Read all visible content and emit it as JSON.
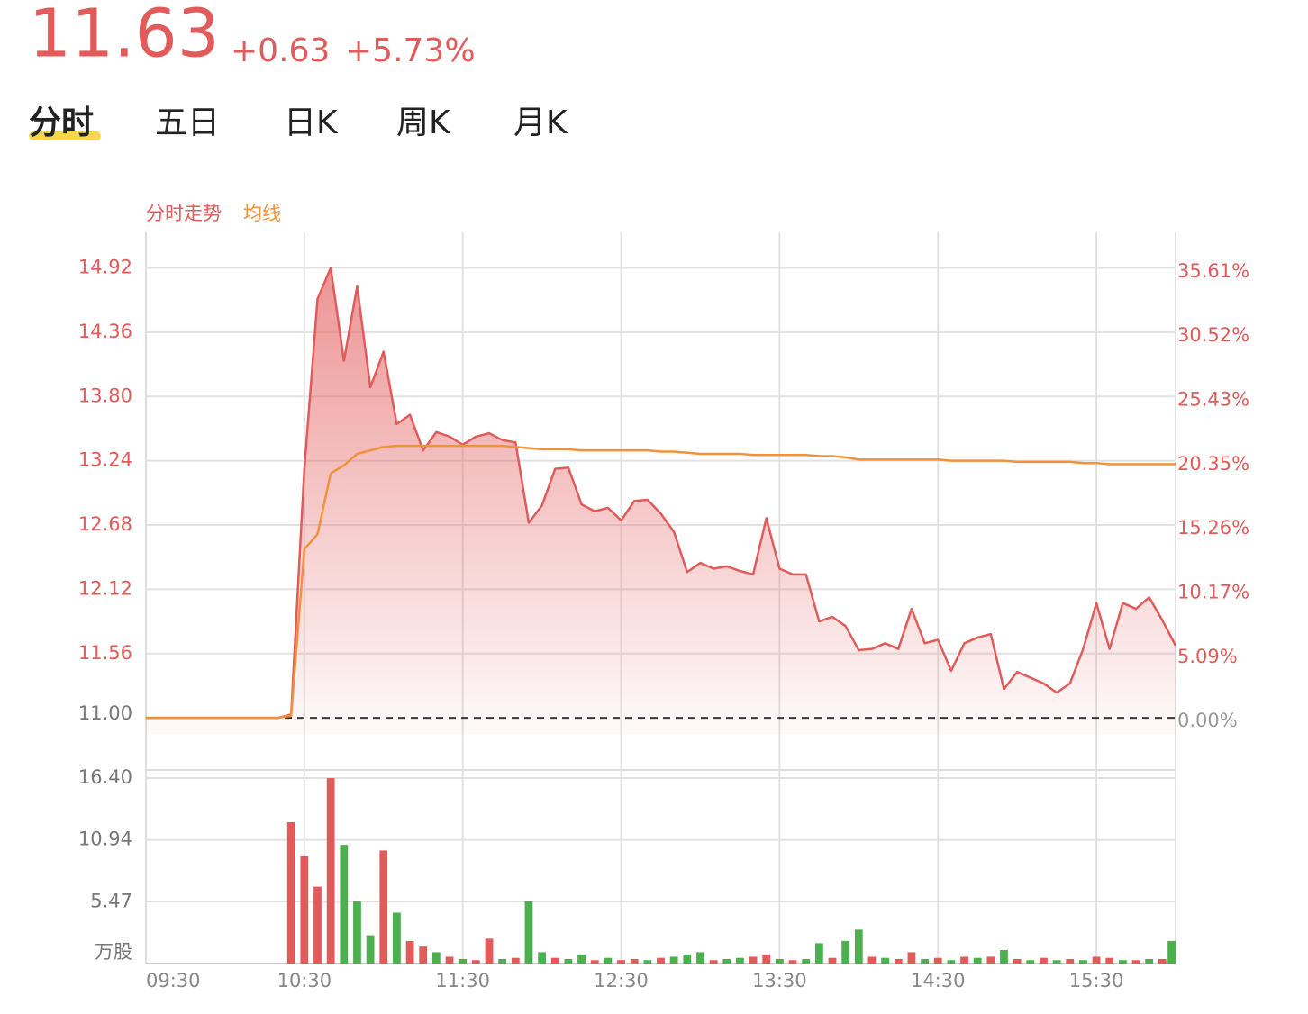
{
  "header": {
    "price": "11.63",
    "change": "+0.63",
    "change_pct": "+5.73%"
  },
  "tabs": [
    "分时",
    "五日",
    "日K",
    "周K",
    "月K"
  ],
  "chart_data": [
    {
      "type": "line",
      "series": [
        {
          "name": "分时走势",
          "color": "#e25b5b",
          "values": [
            11,
            11,
            11,
            11,
            11,
            11,
            11,
            11,
            11,
            11,
            11,
            11.03,
            13.17,
            14.65,
            14.92,
            14.11,
            14.76,
            13.88,
            14.19,
            13.56,
            13.64,
            13.33,
            13.49,
            13.45,
            13.38,
            13.45,
            13.48,
            13.42,
            13.4,
            12.7,
            12.85,
            13.17,
            13.18,
            12.86,
            12.8,
            12.83,
            12.72,
            12.89,
            12.9,
            12.78,
            12.62,
            12.27,
            12.35,
            12.3,
            12.32,
            12.28,
            12.25,
            12.74,
            12.3,
            12.25,
            12.25,
            11.84,
            11.88,
            11.8,
            11.59,
            11.6,
            11.65,
            11.6,
            11.95,
            11.65,
            11.68,
            11.41,
            11.65,
            11.7,
            11.73,
            11.25,
            11.4,
            11.35,
            11.3,
            11.22,
            11.3,
            11.6,
            12.0,
            11.6,
            12.0,
            11.95,
            12.05,
            11.85,
            11.63
          ]
        },
        {
          "name": "均线",
          "color": "#f0913c",
          "values": [
            11,
            11,
            11,
            11,
            11,
            11,
            11,
            11,
            11,
            11,
            11,
            11.02,
            12.47,
            12.6,
            13.13,
            13.2,
            13.3,
            13.33,
            13.36,
            13.37,
            13.37,
            13.37,
            13.37,
            13.37,
            13.37,
            13.37,
            13.37,
            13.37,
            13.36,
            13.35,
            13.34,
            13.34,
            13.34,
            13.33,
            13.33,
            13.33,
            13.33,
            13.33,
            13.33,
            13.32,
            13.32,
            13.31,
            13.3,
            13.3,
            13.3,
            13.3,
            13.29,
            13.29,
            13.29,
            13.29,
            13.29,
            13.28,
            13.28,
            13.27,
            13.25,
            13.25,
            13.25,
            13.25,
            13.25,
            13.25,
            13.25,
            13.24,
            13.24,
            13.24,
            13.24,
            13.24,
            13.23,
            13.23,
            13.23,
            13.23,
            13.23,
            13.22,
            13.22,
            13.21,
            13.21,
            13.21,
            13.21,
            13.21,
            13.21
          ]
        }
      ],
      "ylim": [
        10.86,
        15.23
      ],
      "yticks": [
        {
          "value": 11,
          "label": "11.00"
        },
        11.56,
        12.12,
        12.68,
        13.24,
        {
          "value": 13.8,
          "label": "13.80"
        },
        14.36,
        14.92
      ],
      "y2lim": [
        -1.27,
        38.45
      ],
      "y2ticks": [
        {
          "value": 0,
          "label": "0.00%"
        },
        {
          "value": 5.09,
          "label": "5.09%"
        },
        {
          "value": 10.17,
          "label": "10.17%"
        },
        {
          "value": 15.26,
          "label": "15.26%"
        },
        {
          "value": 20.35,
          "label": "20.35%"
        },
        {
          "value": 25.43,
          "label": "25.43%"
        },
        {
          "value": 30.52,
          "label": "30.52%"
        },
        {
          "value": 35.61,
          "label": "35.61%"
        }
      ],
      "grid": true
    },
    {
      "type": "bar",
      "categories": [
        "09:30",
        null,
        null,
        null,
        null,
        null,
        null,
        null,
        null,
        null,
        null,
        null,
        "10:30",
        null,
        null,
        null,
        null,
        null,
        null,
        null,
        null,
        null,
        null,
        null,
        "11:30",
        null,
        null,
        null,
        null,
        null,
        null,
        null,
        null,
        null,
        null,
        null,
        "12:30",
        null,
        null,
        null,
        null,
        null,
        null,
        null,
        null,
        null,
        null,
        null,
        "13:30",
        null,
        null,
        null,
        null,
        null,
        null,
        null,
        null,
        null,
        null,
        null,
        "14:30",
        null,
        null,
        null,
        null,
        null,
        null,
        null,
        null,
        null,
        null,
        null,
        "15:30",
        null,
        null,
        null,
        null,
        null,
        null
      ],
      "values": [
        0,
        0,
        0,
        0,
        0,
        0,
        0,
        0,
        0,
        0,
        0,
        12.5,
        9.5,
        6.8,
        16.4,
        10.5,
        5.5,
        2.5,
        10,
        4.5,
        2,
        1.5,
        1,
        0.6,
        0.4,
        0.3,
        2.2,
        0.4,
        0.5,
        5.5,
        1,
        0.5,
        0.4,
        0.8,
        0.3,
        0.5,
        0.3,
        0.4,
        0.3,
        0.5,
        0.6,
        0.8,
        1,
        0.3,
        0.4,
        0.5,
        0.6,
        0.8,
        0.4,
        0.3,
        0.4,
        1.8,
        0.5,
        2,
        3,
        0.6,
        0.5,
        0.4,
        1,
        0.4,
        0.5,
        0.3,
        0.6,
        0.5,
        0.6,
        1.2,
        0.4,
        0.3,
        0.5,
        0.3,
        0.4,
        0.3,
        0.6,
        0.5,
        0.3,
        0.3,
        0.4,
        0.4,
        2
      ],
      "colors": [
        "#e25b5b",
        "#e25b5b",
        "#e25b5b",
        "#e25b5b",
        "#e25b5b",
        "#e25b5b",
        "#e25b5b",
        "#e25b5b",
        "#e25b5b",
        "#e25b5b",
        "#e25b5b",
        "#e25b5b",
        "#e25b5b",
        "#e25b5b",
        "#e25b5b",
        "#4cb050",
        "#4cb050",
        "#4cb050",
        "#e25b5b",
        "#4cb050",
        "#e25b5b",
        "#e25b5b",
        "#4cb050",
        "#e25b5b",
        "#4cb050",
        "#e25b5b",
        "#e25b5b",
        "#4cb050",
        "#e25b5b",
        "#4cb050",
        "#4cb050",
        "#e25b5b",
        "#4cb050",
        "#4cb050",
        "#e25b5b",
        "#4cb050",
        "#e25b5b",
        "#e25b5b",
        "#4cb050",
        "#e25b5b",
        "#4cb050",
        "#4cb050",
        "#4cb050",
        "#e25b5b",
        "#4cb050",
        "#4cb050",
        "#e25b5b",
        "#e25b5b",
        "#4cb050",
        "#e25b5b",
        "#4cb050",
        "#4cb050",
        "#e25b5b",
        "#4cb050",
        "#4cb050",
        "#e25b5b",
        "#4cb050",
        "#e25b5b",
        "#e25b5b",
        "#4cb050",
        "#e25b5b",
        "#4cb050",
        "#e25b5b",
        "#4cb050",
        "#e25b5b",
        "#4cb050",
        "#e25b5b",
        "#4cb050",
        "#e25b5b",
        "#4cb050",
        "#e25b5b",
        "#4cb050",
        "#e25b5b",
        "#e25b5b",
        "#4cb050",
        "#e25b5b",
        "#4cb050",
        "#e25b5b",
        "#4cb050"
      ],
      "ylim": [
        0,
        17.12
      ],
      "yticks": [
        {
          "value": 0,
          "label": "万股"
        },
        5.47,
        10.94,
        {
          "value": 16.4,
          "label": "16.40"
        }
      ],
      "grid": true
    }
  ]
}
